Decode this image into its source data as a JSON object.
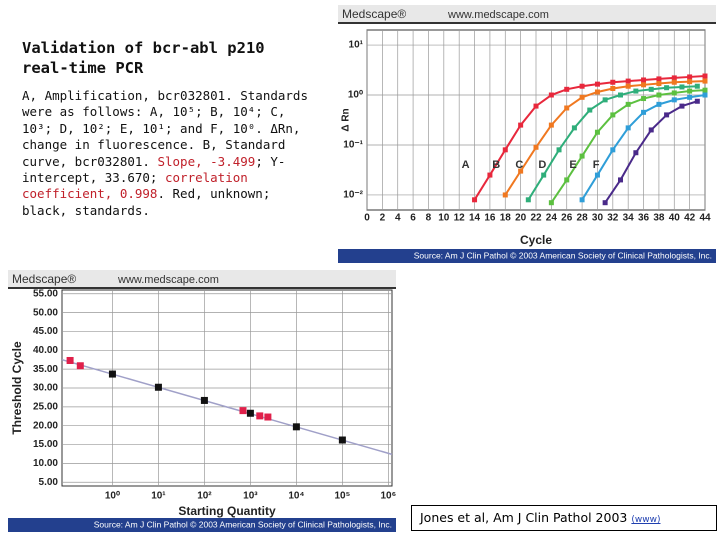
{
  "text_box": {
    "title": "Validation of bcr-abl p210 real-time PCR",
    "body": [
      {
        "text": "A, Amplification, bcr032801. Standards were as follows: A, 10⁵; B, 10⁴; C, 10³; D, 10²; E, 10¹; and F, 10⁰. ΔRn, change in fluorescence. B, Standard curve, bcr032801. "
      },
      {
        "text": "Slope, -3.499",
        "color": "#c0202a"
      },
      {
        "text": "; Y-intercept, 33.670; "
      },
      {
        "text": "correlation coefficient, 0.998",
        "color": "#c0202a"
      },
      {
        "text": ". Red, unknown; black, standards."
      }
    ]
  },
  "citation": {
    "text": "Jones et al, Am J Clin Pathol 2003",
    "link": "(www)"
  },
  "chart_data": [
    {
      "type": "line",
      "header_logo": "Medscape®",
      "header_url": "www.medscape.com",
      "source": "Source: Am J Clin Pathol © 2003 American Society of Clinical Pathologists, Inc.",
      "x_label": "Cycle",
      "y_label": "Δ Rn",
      "ylog": true,
      "grid": true,
      "xlim": [
        0,
        44
      ],
      "ylim": [
        0.005,
        20
      ],
      "xticks": [
        0,
        2,
        4,
        6,
        8,
        10,
        12,
        14,
        16,
        18,
        20,
        22,
        24,
        26,
        28,
        30,
        32,
        34,
        36,
        38,
        40,
        42,
        44
      ],
      "yticks": [
        {
          "value": 10,
          "label": "10¹"
        },
        {
          "value": 1,
          "label": "10⁰"
        },
        {
          "value": 0.1,
          "label": "10⁻¹"
        },
        {
          "value": 0.01,
          "label": "10⁻²"
        }
      ],
      "series": [
        {
          "name": "A",
          "color": "#e8283c",
          "x": [
            14,
            16,
            18,
            20,
            22,
            24,
            26,
            28,
            30,
            32,
            34,
            36,
            38,
            40,
            42,
            44
          ],
          "values": [
            0.008,
            0.025,
            0.08,
            0.25,
            0.6,
            1.0,
            1.3,
            1.5,
            1.65,
            1.8,
            1.9,
            2.0,
            2.1,
            2.2,
            2.3,
            2.4
          ]
        },
        {
          "name": "B",
          "color": "#f07820",
          "x": [
            18,
            20,
            22,
            24,
            26,
            28,
            30,
            32,
            34,
            36,
            38,
            40,
            42,
            44
          ],
          "values": [
            0.01,
            0.03,
            0.09,
            0.25,
            0.55,
            0.9,
            1.15,
            1.35,
            1.5,
            1.6,
            1.7,
            1.8,
            1.85,
            1.9
          ]
        },
        {
          "name": "C",
          "color": "#2fae7a",
          "x": [
            21,
            23,
            25,
            27,
            29,
            31,
            33,
            35,
            37,
            39,
            41,
            43
          ],
          "values": [
            0.008,
            0.025,
            0.08,
            0.22,
            0.5,
            0.8,
            1.0,
            1.2,
            1.3,
            1.4,
            1.45,
            1.5
          ]
        },
        {
          "name": "D",
          "color": "#5cc040",
          "x": [
            24,
            26,
            28,
            30,
            32,
            34,
            36,
            38,
            40,
            42,
            44
          ],
          "values": [
            0.007,
            0.02,
            0.06,
            0.18,
            0.4,
            0.65,
            0.85,
            1.0,
            1.1,
            1.2,
            1.25
          ]
        },
        {
          "name": "E",
          "color": "#2f9ed8",
          "x": [
            28,
            30,
            32,
            34,
            36,
            38,
            40,
            42,
            44
          ],
          "values": [
            0.008,
            0.025,
            0.08,
            0.22,
            0.45,
            0.65,
            0.8,
            0.9,
            1.0
          ]
        },
        {
          "name": "F",
          "color": "#4a2a8a",
          "x": [
            31,
            33,
            35,
            37,
            39,
            41,
            43
          ],
          "values": [
            0.007,
            0.02,
            0.07,
            0.2,
            0.4,
            0.6,
            0.75
          ]
        }
      ]
    },
    {
      "type": "scatter",
      "header_logo": "Medscape®",
      "header_url": "www.medscape.com",
      "source": "Source: Am J Clin Pathol © 2003 American Society of Clinical Pathologists, Inc.",
      "x_label": "Starting Quantity",
      "y_label": "Threshold Cycle",
      "xlog": true,
      "grid": true,
      "xlim": [
        0.08,
        1200000
      ],
      "ylim": [
        4,
        56
      ],
      "xticks": [
        {
          "value": 1,
          "label": "10⁰"
        },
        {
          "value": 10,
          "label": "10¹"
        },
        {
          "value": 100,
          "label": "10²"
        },
        {
          "value": 1000,
          "label": "10³"
        },
        {
          "value": 10000,
          "label": "10⁴"
        },
        {
          "value": 100000,
          "label": "10⁵"
        },
        {
          "value": 1000000,
          "label": "10⁶"
        }
      ],
      "yticks": [
        {
          "value": 55,
          "label": "55.00"
        },
        {
          "value": 50,
          "label": "50.00"
        },
        {
          "value": 45,
          "label": "45.00"
        },
        {
          "value": 40,
          "label": "40.00"
        },
        {
          "value": 35,
          "label": "35.00"
        },
        {
          "value": 30,
          "label": "30.00"
        },
        {
          "value": 25,
          "label": "25.00"
        },
        {
          "value": 20,
          "label": "20.00"
        },
        {
          "value": 15,
          "label": "15.00"
        },
        {
          "value": 10,
          "label": "10.00"
        },
        {
          "value": 5,
          "label": "5.00"
        }
      ],
      "trendline": {
        "slope": -3.499,
        "intercept": 33.67,
        "color": "#a0a0c8"
      },
      "series": [
        {
          "color": "#111111",
          "x": [
            1,
            10,
            100,
            1000,
            10000,
            100000
          ],
          "values": [
            33.7,
            30.2,
            26.7,
            23.3,
            19.7,
            16.2
          ]
        },
        {
          "color": "#e0204a",
          "x": [
            0.12,
            0.2,
            690,
            1600,
            2400
          ],
          "values": [
            37.3,
            35.9,
            24.0,
            22.6,
            22.3
          ]
        }
      ]
    }
  ]
}
